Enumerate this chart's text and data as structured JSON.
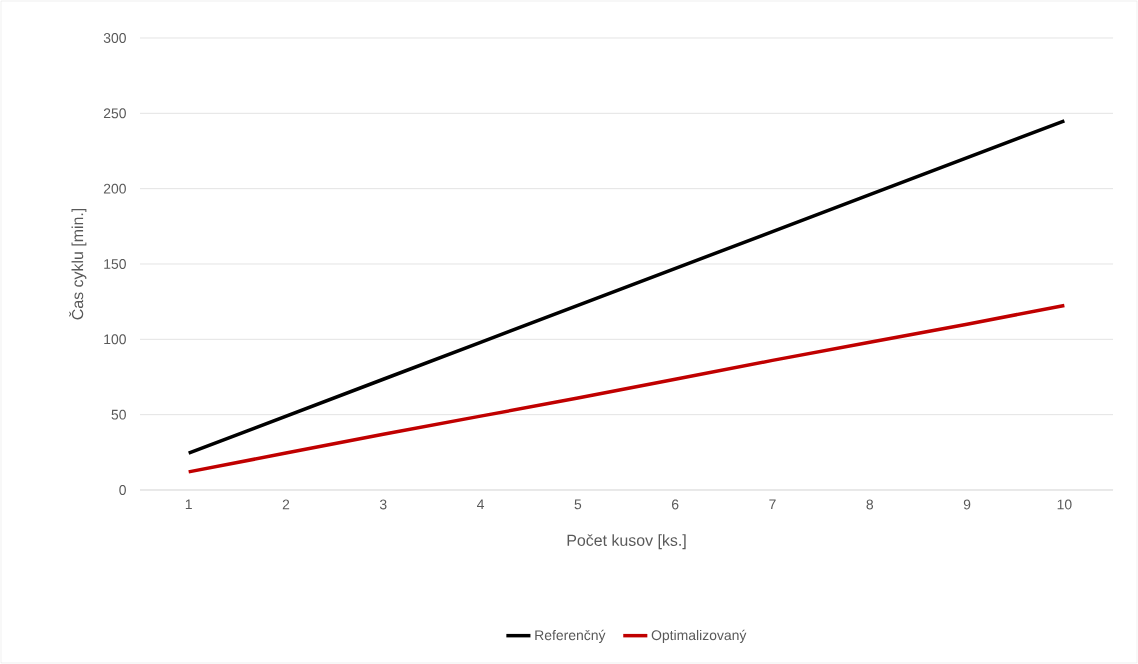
{
  "chart_data": {
    "type": "line",
    "xlabel": "Počet kusov [ks.]",
    "ylabel": "Čas cyklu [min.]",
    "categories": [
      "1",
      "2",
      "3",
      "4",
      "5",
      "6",
      "7",
      "8",
      "9",
      "10"
    ],
    "series": [
      {
        "name": "Referenčný",
        "color": "#000000",
        "values": [
          24.5,
          49,
          73.5,
          98,
          122.5,
          147,
          171.5,
          196,
          220.5,
          245
        ]
      },
      {
        "name": "Optimalizovaný",
        "color": "#c00000",
        "values": [
          12,
          24.5,
          37,
          49,
          61,
          73.5,
          86,
          98,
          110,
          122.5
        ]
      }
    ],
    "ylim": [
      0,
      300
    ],
    "yticks": [
      0,
      50,
      100,
      150,
      200,
      250,
      300
    ],
    "grid": "y",
    "legend": "bottom",
    "marker": "none",
    "line_style": "solid"
  }
}
